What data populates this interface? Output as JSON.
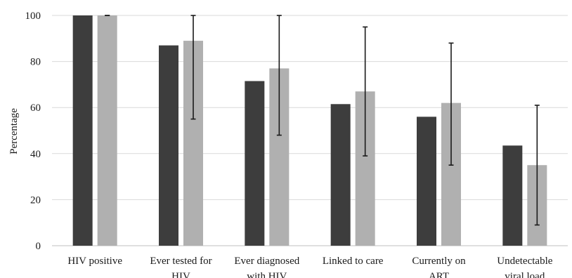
{
  "chart_data": {
    "type": "bar",
    "title": "",
    "xlabel": "",
    "ylabel": "Percentage",
    "ylim": [
      0,
      100
    ],
    "yticks": [
      0,
      20,
      40,
      60,
      80,
      100
    ],
    "grid": true,
    "legend": "none",
    "categories": [
      [
        "HIV positive"
      ],
      [
        "Ever tested for",
        "HIV"
      ],
      [
        "Ever diagnosed",
        "with HIV"
      ],
      [
        "Linked to care"
      ],
      [
        "Currently on",
        "ART"
      ],
      [
        "Undetectable",
        "viral load"
      ]
    ],
    "series": [
      {
        "color": "#3d3d3d",
        "values": [
          100,
          87,
          71.5,
          61.5,
          56,
          43.5
        ]
      },
      {
        "color": "#b0b0b0",
        "values": [
          100,
          89,
          77,
          67,
          62,
          35
        ],
        "error_low": [
          100,
          55,
          48,
          39,
          35,
          9
        ],
        "error_high": [
          100,
          100,
          100,
          95,
          88,
          61
        ]
      }
    ]
  }
}
